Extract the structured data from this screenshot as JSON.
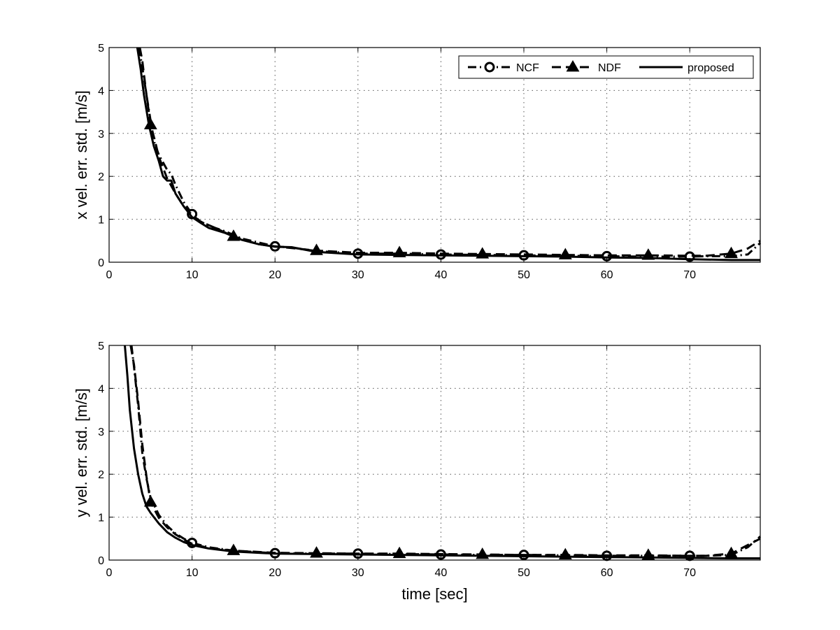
{
  "chart_data": [
    {
      "type": "line",
      "title": "",
      "xlabel": "",
      "ylabel": "x vel. err. std. [m/s]",
      "xlim": [
        0,
        78.5
      ],
      "ylim": [
        0,
        5
      ],
      "xticks": [
        0,
        10,
        20,
        30,
        40,
        50,
        60,
        70
      ],
      "yticks": [
        0,
        1,
        2,
        3,
        4,
        5
      ],
      "grid": true,
      "legend_position": "top-right",
      "series": [
        {
          "name": "NCF",
          "marker": "circle",
          "dash": "dash-dot",
          "marker_x": [
            10,
            20,
            30,
            40,
            50,
            60,
            70
          ],
          "x": [
            3.6,
            4,
            4.5,
            5,
            5.5,
            6,
            7,
            7.5,
            8,
            9,
            10,
            11,
            12,
            14,
            16,
            20,
            22,
            25,
            30,
            35,
            40,
            45,
            50,
            55,
            60,
            65,
            70,
            72,
            75,
            77,
            78.5
          ],
          "y": [
            5.0,
            4.55,
            3.9,
            3.3,
            2.75,
            2.5,
            2.15,
            2.05,
            1.8,
            1.4,
            1.12,
            0.95,
            0.85,
            0.72,
            0.55,
            0.37,
            0.34,
            0.26,
            0.2,
            0.2,
            0.18,
            0.17,
            0.16,
            0.15,
            0.14,
            0.13,
            0.13,
            0.14,
            0.14,
            0.18,
            0.45
          ]
        },
        {
          "name": "NDF",
          "marker": "triangle",
          "dash": "dashed",
          "marker_x": [
            5,
            15,
            25,
            35,
            45,
            55,
            65,
            75
          ],
          "x": [
            3.7,
            4,
            4.5,
            5,
            5.5,
            6,
            7,
            8,
            9,
            10,
            11,
            13,
            15,
            18,
            20,
            25,
            30,
            35,
            40,
            45,
            50,
            55,
            60,
            65,
            70,
            72,
            75,
            77,
            78.5
          ],
          "y": [
            5.0,
            4.7,
            3.9,
            3.2,
            2.85,
            2.45,
            1.95,
            1.6,
            1.3,
            1.1,
            0.95,
            0.78,
            0.6,
            0.42,
            0.37,
            0.27,
            0.22,
            0.22,
            0.2,
            0.19,
            0.18,
            0.17,
            0.16,
            0.16,
            0.15,
            0.15,
            0.2,
            0.32,
            0.5
          ]
        },
        {
          "name": "proposed",
          "marker": "none",
          "dash": "solid",
          "marker_x": [],
          "x": [
            3.4,
            3.8,
            4.2,
            4.8,
            5.4,
            6,
            6.5,
            7,
            7.5,
            8,
            9,
            10,
            11,
            12,
            14,
            16,
            18,
            20,
            22,
            25,
            30,
            35,
            40,
            45,
            50,
            55,
            60,
            65,
            70,
            75,
            78.5
          ],
          "y": [
            5.0,
            4.5,
            3.9,
            3.2,
            2.7,
            2.35,
            2.0,
            1.9,
            1.9,
            1.6,
            1.3,
            1.05,
            0.92,
            0.8,
            0.68,
            0.52,
            0.42,
            0.36,
            0.35,
            0.24,
            0.18,
            0.17,
            0.16,
            0.15,
            0.14,
            0.13,
            0.11,
            0.1,
            0.07,
            0.05,
            0.05
          ]
        }
      ]
    },
    {
      "type": "line",
      "title": "",
      "xlabel": "time [sec]",
      "ylabel": "y vel. err. std. [m/s]",
      "xlim": [
        0,
        78.5
      ],
      "ylim": [
        0,
        5
      ],
      "xticks": [
        0,
        10,
        20,
        30,
        40,
        50,
        60,
        70
      ],
      "yticks": [
        0,
        1,
        2,
        3,
        4,
        5
      ],
      "grid": true,
      "series": [
        {
          "name": "NCF",
          "marker": "circle",
          "dash": "dash-dot",
          "marker_x": [
            10,
            20,
            30,
            40,
            50,
            60,
            70
          ],
          "x": [
            2.7,
            3,
            3.5,
            4,
            4.5,
            5,
            6,
            7,
            8,
            9,
            10,
            12,
            15,
            20,
            25,
            30,
            35,
            40,
            45,
            50,
            55,
            60,
            65,
            70,
            72,
            75,
            77,
            78.5
          ],
          "y": [
            5.0,
            4.5,
            3.6,
            2.5,
            1.9,
            1.45,
            1.05,
            0.8,
            0.62,
            0.5,
            0.4,
            0.3,
            0.22,
            0.16,
            0.15,
            0.15,
            0.14,
            0.13,
            0.12,
            0.12,
            0.11,
            0.1,
            0.1,
            0.1,
            0.1,
            0.12,
            0.3,
            0.55
          ]
        },
        {
          "name": "NDF",
          "marker": "triangle",
          "dash": "dashed",
          "marker_x": [
            5,
            15,
            25,
            35,
            45,
            55,
            65,
            75
          ],
          "x": [
            2.6,
            3,
            3.5,
            4,
            4.5,
            5,
            6,
            7,
            8,
            9,
            10,
            12,
            15,
            20,
            25,
            30,
            35,
            40,
            45,
            50,
            55,
            60,
            65,
            70,
            72,
            75,
            77,
            78.5
          ],
          "y": [
            5.0,
            4.55,
            3.7,
            2.7,
            1.95,
            1.35,
            0.98,
            0.76,
            0.6,
            0.48,
            0.38,
            0.28,
            0.22,
            0.17,
            0.16,
            0.15,
            0.15,
            0.14,
            0.13,
            0.12,
            0.12,
            0.11,
            0.11,
            0.1,
            0.1,
            0.15,
            0.35,
            0.5
          ]
        },
        {
          "name": "proposed",
          "marker": "none",
          "dash": "solid",
          "marker_x": [],
          "x": [
            1.9,
            2.2,
            2.5,
            3,
            3.5,
            4,
            4.5,
            5,
            6,
            7,
            8,
            9,
            10,
            12,
            15,
            20,
            25,
            30,
            35,
            40,
            45,
            50,
            55,
            60,
            65,
            70,
            75,
            78.5
          ],
          "y": [
            5.0,
            4.3,
            3.5,
            2.6,
            2.0,
            1.55,
            1.25,
            1.1,
            0.85,
            0.65,
            0.52,
            0.42,
            0.35,
            0.27,
            0.2,
            0.15,
            0.14,
            0.13,
            0.12,
            0.11,
            0.1,
            0.09,
            0.08,
            0.07,
            0.06,
            0.05,
            0.04,
            0.04
          ]
        }
      ]
    }
  ]
}
